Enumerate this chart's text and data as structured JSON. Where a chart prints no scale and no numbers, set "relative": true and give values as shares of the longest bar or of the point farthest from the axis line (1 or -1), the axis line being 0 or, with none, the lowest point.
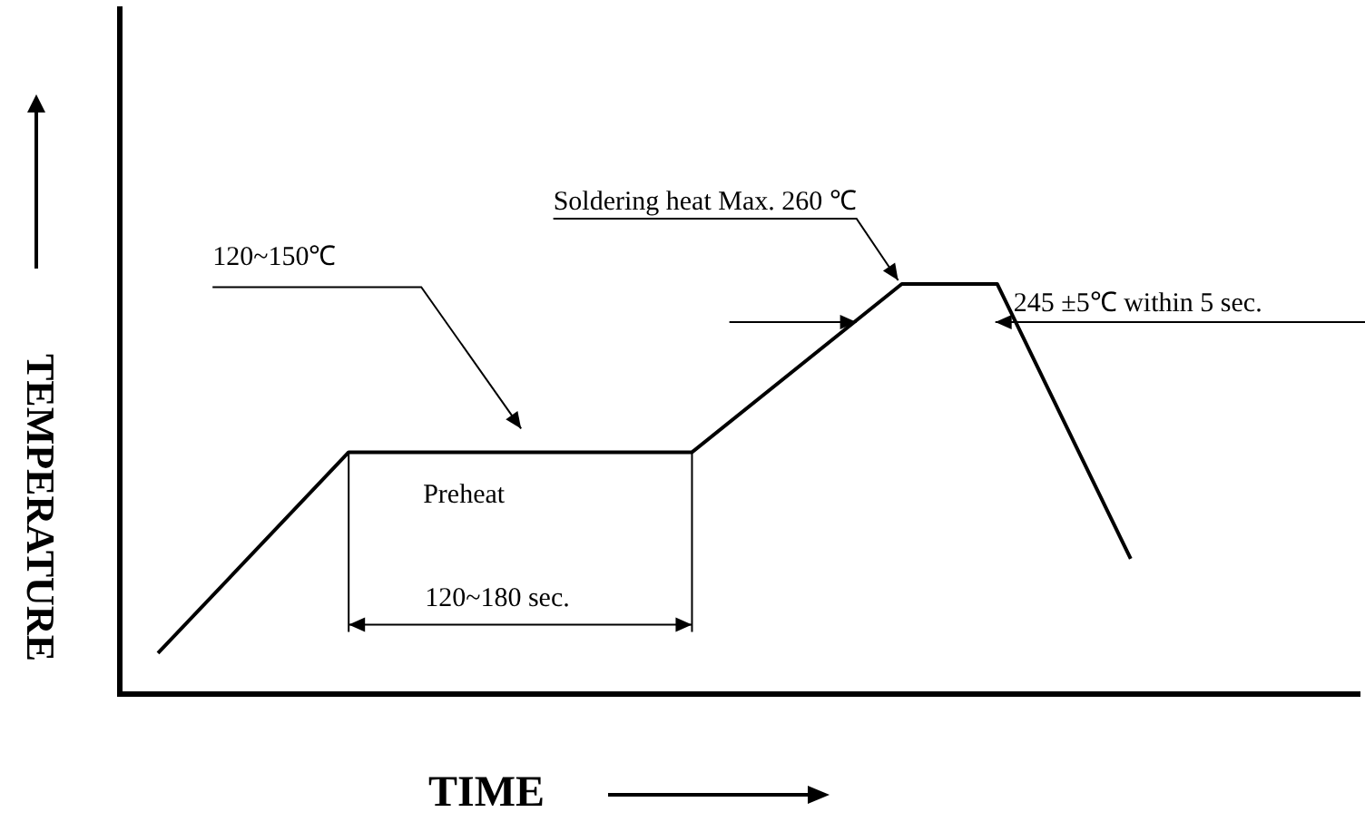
{
  "chart_data": {
    "type": "line",
    "xlabel": "TIME",
    "ylabel": "TEMPERATURE",
    "relative": true,
    "marker": "none",
    "line_style": "solid",
    "grid": false,
    "legend": false,
    "categories": [
      null,
      null,
      null,
      null,
      null,
      null,
      null,
      null,
      null,
      null,
      null,
      null,
      null,
      null,
      null,
      null,
      null,
      null,
      null,
      null,
      null,
      null,
      null,
      null,
      null,
      null,
      null,
      null,
      null,
      null,
      null,
      null,
      null,
      null,
      null,
      null,
      null,
      null,
      null,
      null,
      null,
      null,
      null,
      null,
      null,
      null,
      null,
      null,
      null,
      null,
      null,
      null,
      null,
      null,
      null,
      null,
      null,
      null,
      null,
      null,
      null,
      null,
      null,
      null,
      null,
      null
    ],
    "series": [
      {
        "color": "#000000",
        "values": [
          null,
          null,
          0.1,
          null,
          null,
          null,
          null,
          null,
          null,
          null,
          null,
          null,
          0.59,
          null,
          null,
          null,
          null,
          null,
          null,
          null,
          null,
          null,
          null,
          null,
          null,
          null,
          null,
          null,
          null,
          null,
          0.59,
          null,
          null,
          null,
          null,
          null,
          null,
          null,
          null,
          null,
          null,
          1,
          null,
          null,
          null,
          null,
          1,
          null,
          null,
          null,
          null,
          null,
          null,
          0.33,
          null,
          null,
          null,
          null,
          null,
          null,
          null,
          null,
          null,
          null,
          null,
          null
        ]
      }
    ],
    "annotations": [
      "Soldering heat Max. 260 ℃",
      "120~150℃",
      "245 ±5℃ within 5 sec.",
      "Preheat",
      "120~180 sec."
    ]
  }
}
